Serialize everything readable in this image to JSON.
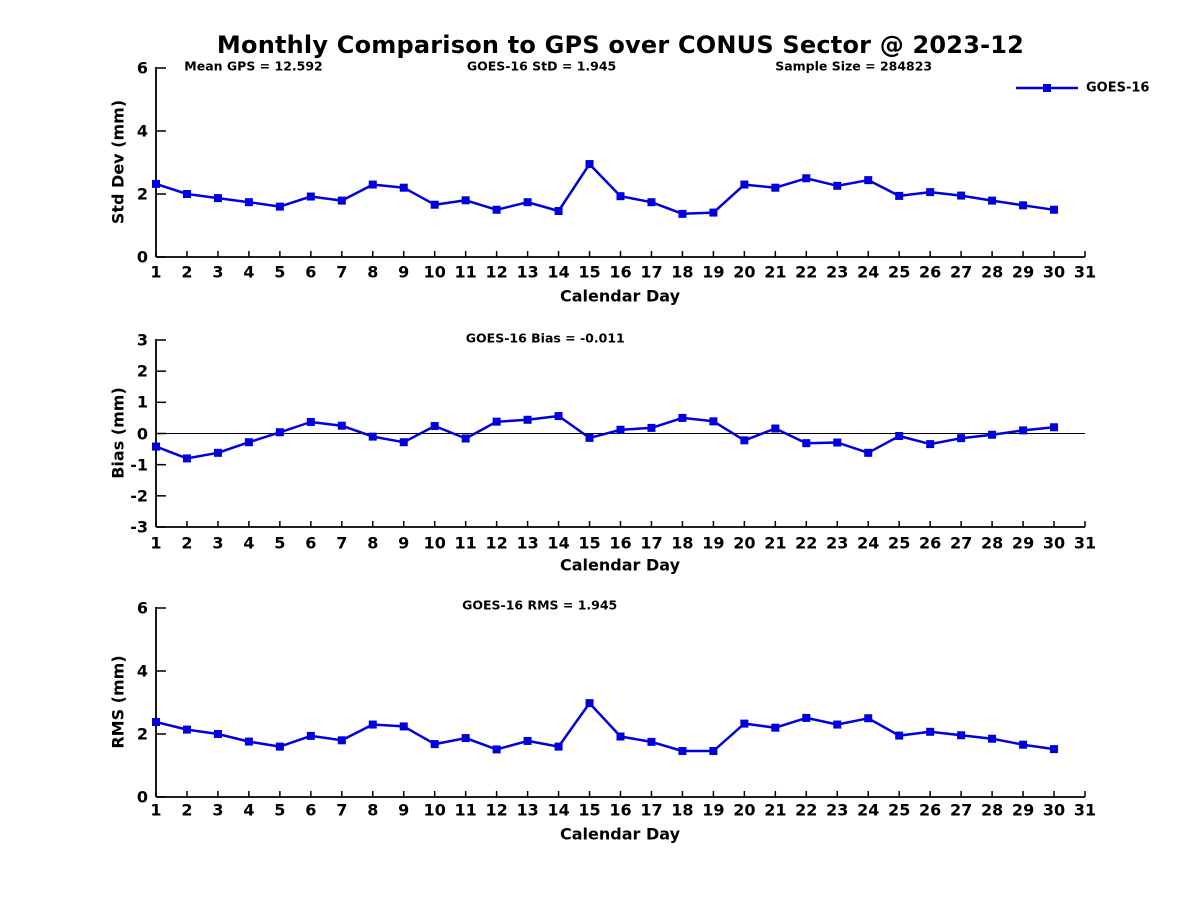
{
  "page": {
    "title": "Monthly Comparison to GPS over CONUS Sector @ 2023-12",
    "background": "#ffffff"
  },
  "colors": {
    "line": "#0000dd",
    "axis": "#000000",
    "text": "#000000",
    "zero_line": "#000000"
  },
  "legend": {
    "label": "GOES-16",
    "marker": "filled-square",
    "position": "top-right"
  },
  "stats": {
    "mean_gps": 12.592,
    "goes16_std": 1.945,
    "sample_size": 284823,
    "goes16_bias": -0.011,
    "goes16_rms": 1.945
  },
  "chart_data": [
    {
      "type": "line",
      "ylabel": "Std Dev (mm)",
      "xlabel": "Calendar Day",
      "annotations": [
        "Mean GPS = 12.592",
        "GOES-16 StD = 1.945",
        "Sample Size = 284823"
      ],
      "xlim": [
        1,
        31
      ],
      "ylim": [
        0,
        6
      ],
      "xticks": [
        1,
        2,
        3,
        4,
        5,
        6,
        7,
        8,
        9,
        10,
        11,
        12,
        13,
        14,
        15,
        16,
        17,
        18,
        19,
        20,
        21,
        22,
        23,
        24,
        25,
        26,
        27,
        28,
        29,
        30,
        31
      ],
      "yticks": [
        0,
        2,
        4,
        6
      ],
      "zero_line": false,
      "x": [
        1,
        2,
        3,
        4,
        5,
        6,
        7,
        8,
        9,
        10,
        11,
        12,
        13,
        14,
        15,
        16,
        17,
        18,
        19,
        20,
        21,
        22,
        23,
        24,
        25,
        26,
        27,
        28,
        29,
        30
      ],
      "series": [
        {
          "name": "GOES-16",
          "marker": "square",
          "values": [
            2.32,
            2.0,
            1.87,
            1.74,
            1.6,
            1.92,
            1.79,
            2.3,
            2.2,
            1.66,
            1.8,
            1.5,
            1.74,
            1.46,
            2.95,
            1.93,
            1.74,
            1.37,
            1.41,
            2.3,
            2.2,
            2.5,
            2.26,
            2.44,
            1.94,
            2.06,
            1.95,
            1.79,
            1.64,
            1.5
          ]
        }
      ]
    },
    {
      "type": "line",
      "ylabel": "Bias (mm)",
      "xlabel": "Calendar Day",
      "annotations": [
        "GOES-16 Bias = -0.011"
      ],
      "xlim": [
        1,
        31
      ],
      "ylim": [
        -3,
        3
      ],
      "xticks": [
        1,
        2,
        3,
        4,
        5,
        6,
        7,
        8,
        9,
        10,
        11,
        12,
        13,
        14,
        15,
        16,
        17,
        18,
        19,
        20,
        21,
        22,
        23,
        24,
        25,
        26,
        27,
        28,
        29,
        30,
        31
      ],
      "yticks": [
        -3,
        -2,
        -1,
        0,
        1,
        2,
        3
      ],
      "zero_line": true,
      "x": [
        1,
        2,
        3,
        4,
        5,
        6,
        7,
        8,
        9,
        10,
        11,
        12,
        13,
        14,
        15,
        16,
        17,
        18,
        19,
        20,
        21,
        22,
        23,
        24,
        25,
        26,
        27,
        28,
        29,
        30
      ],
      "series": [
        {
          "name": "GOES-16",
          "marker": "square",
          "values": [
            -0.42,
            -0.8,
            -0.62,
            -0.28,
            0.04,
            0.37,
            0.25,
            -0.1,
            -0.28,
            0.24,
            -0.16,
            0.38,
            0.44,
            0.56,
            -0.14,
            0.12,
            0.18,
            0.5,
            0.39,
            -0.22,
            0.16,
            -0.31,
            -0.29,
            -0.62,
            -0.08,
            -0.34,
            -0.15,
            -0.04,
            0.1,
            0.2
          ]
        }
      ]
    },
    {
      "type": "line",
      "ylabel": "RMS (mm)",
      "xlabel": "Calendar Day",
      "annotations": [
        "GOES-16 RMS = 1.945"
      ],
      "xlim": [
        1,
        31
      ],
      "ylim": [
        0,
        6
      ],
      "xticks": [
        1,
        2,
        3,
        4,
        5,
        6,
        7,
        8,
        9,
        10,
        11,
        12,
        13,
        14,
        15,
        16,
        17,
        18,
        19,
        20,
        21,
        22,
        23,
        24,
        25,
        26,
        27,
        28,
        29,
        30,
        31
      ],
      "yticks": [
        0,
        2,
        4,
        6
      ],
      "zero_line": false,
      "x": [
        1,
        2,
        3,
        4,
        5,
        6,
        7,
        8,
        9,
        10,
        11,
        12,
        13,
        14,
        15,
        16,
        17,
        18,
        19,
        20,
        21,
        22,
        23,
        24,
        25,
        26,
        27,
        28,
        29,
        30
      ],
      "series": [
        {
          "name": "GOES-16",
          "marker": "square",
          "values": [
            2.38,
            2.14,
            2.0,
            1.76,
            1.6,
            1.94,
            1.8,
            2.3,
            2.24,
            1.68,
            1.87,
            1.51,
            1.78,
            1.6,
            2.98,
            1.92,
            1.75,
            1.46,
            1.46,
            2.33,
            2.2,
            2.51,
            2.3,
            2.5,
            1.95,
            2.07,
            1.96,
            1.85,
            1.66,
            1.52
          ]
        }
      ]
    }
  ]
}
